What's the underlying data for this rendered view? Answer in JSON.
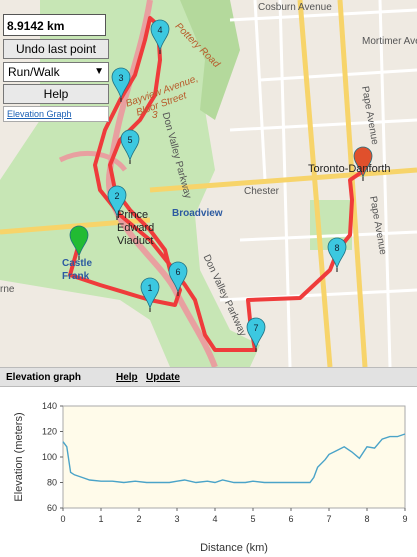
{
  "panel": {
    "distance": "8.9142 km",
    "undo_label": "Undo last point",
    "mode_value": "Run/Walk",
    "help_label": "Help",
    "elevation_link": "Elevation Graph"
  },
  "map_labels": {
    "cosburn": "Cosburn Avenue",
    "mortimer": "Mortimer Ave",
    "pottery": "Pottery Road",
    "bayview": "Bayview Avenue,",
    "bloor": "Bloor Street",
    "three": "3",
    "dvp1": "Don Valley Parkway",
    "dvp2": "Don Valley Parkway",
    "chester": "Chester",
    "broadview": "Broadview",
    "prince1": "Prince",
    "prince2": "Edward",
    "prince3": "Viaduct",
    "castle1": "Castle",
    "castle2": "Frank",
    "toronto": "Toronto-Danforth",
    "pape1": "Pape Avenue",
    "pape2": "Pape Avenue",
    "rne": "rne"
  },
  "markers": [
    {
      "label": "4",
      "color": "#3cc8e0"
    },
    {
      "label": "3",
      "color": "#3cc8e0"
    },
    {
      "label": "5",
      "color": "#3cc8e0"
    },
    {
      "label": "2",
      "color": "#3cc8e0"
    },
    {
      "label": "6",
      "color": "#3cc8e0"
    },
    {
      "label": "1",
      "color": "#3cc8e0"
    },
    {
      "label": "7",
      "color": "#3cc8e0"
    },
    {
      "label": "8",
      "color": "#3cc8e0"
    },
    {
      "label": "",
      "color": "#22bb33"
    },
    {
      "label": "",
      "color": "#e0502c"
    }
  ],
  "elevation_bar": {
    "title": "Elevation graph",
    "help": "Help",
    "update": "Update"
  },
  "chart_data": {
    "type": "line",
    "xlabel": "Distance (km)",
    "ylabel": "Elevation (meters)",
    "xlim": [
      0,
      9
    ],
    "ylim": [
      60,
      140
    ],
    "xticks": [
      0,
      1,
      2,
      3,
      4,
      5,
      6,
      7,
      8,
      9
    ],
    "yticks": [
      60,
      80,
      100,
      120,
      140
    ],
    "line_color": "#4aa3c8",
    "series": [
      {
        "x": [
          0,
          0.1,
          0.2,
          0.3,
          0.5,
          0.7,
          1.0,
          1.3,
          1.6,
          1.9,
          2.2,
          2.5,
          2.8,
          3.0,
          3.2,
          3.5,
          3.8,
          4.0,
          4.2,
          4.5,
          4.8,
          5.0,
          5.3,
          5.6,
          5.9,
          6.2,
          6.5,
          6.6,
          6.7,
          6.9,
          7.0,
          7.2,
          7.4,
          7.6,
          7.8,
          8.0,
          8.2,
          8.4,
          8.6,
          8.8,
          9.0
        ],
        "y": [
          112,
          108,
          88,
          86,
          84,
          82,
          81,
          81,
          80,
          81,
          80,
          80,
          80,
          81,
          82,
          80,
          81,
          80,
          82,
          80,
          80,
          81,
          80,
          80,
          80,
          80,
          80,
          84,
          92,
          98,
          102,
          105,
          108,
          104,
          99,
          108,
          107,
          114,
          116,
          116,
          118
        ]
      }
    ]
  }
}
